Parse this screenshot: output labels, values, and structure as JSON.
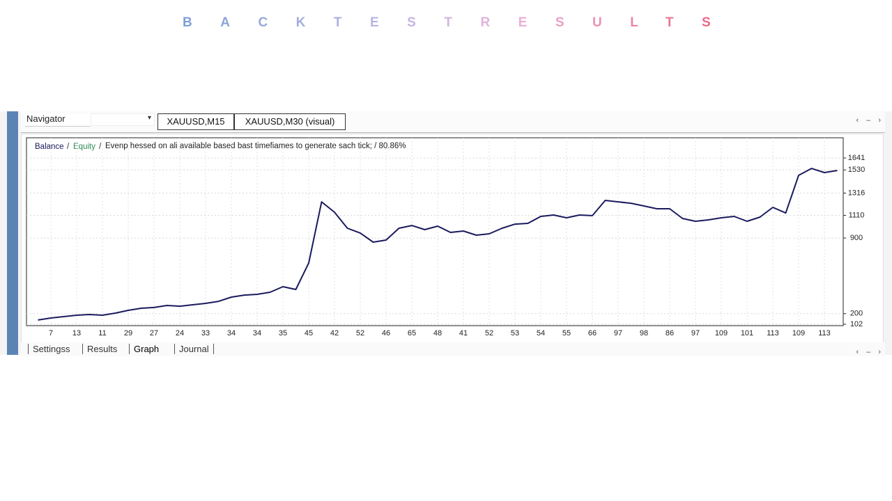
{
  "header": {
    "title": "BACKTESTRESULTS"
  },
  "toolbar": {
    "navigator": "Navigator",
    "tabs": [
      "XAUUSD,M15",
      "XAUUSD,M30 (visual)"
    ]
  },
  "bottom_tabs": [
    "Settingss",
    "Results",
    "Graph",
    "Journal"
  ],
  "chart_data": {
    "type": "line",
    "separator": "/",
    "equity_label": "Equity",
    "note": "Evenp hessed on ali available based bast timefiames to generate sach tick; / 80.86%",
    "categories": [
      null,
      "7",
      null,
      "13",
      null,
      "11",
      null,
      "29",
      null,
      "27",
      null,
      "24",
      null,
      "33",
      null,
      "34",
      null,
      "34",
      null,
      "35",
      null,
      "45",
      null,
      "42",
      null,
      "52",
      null,
      "46",
      null,
      "65",
      null,
      "48",
      null,
      "41",
      null,
      "52",
      null,
      "53",
      null,
      "54",
      null,
      "55",
      null,
      "66",
      null,
      "97",
      null,
      "98",
      null,
      "86",
      null,
      "97",
      null,
      "109",
      null,
      "101",
      null,
      "113",
      null,
      "109",
      null,
      "113",
      null
    ],
    "series": [
      {
        "name": "Balance",
        "color": "#1a1a5e",
        "values": [
          141,
          160,
          173,
          186,
          192,
          186,
          205,
          231,
          250,
          257,
          276,
          269,
          282,
          295,
          314,
          353,
          372,
          379,
          398,
          450,
          424,
          669,
          1235,
          1139,
          991,
          946,
          862,
          881,
          991,
          1016,
          978,
          1010,
          952,
          965,
          926,
          939,
          991,
          1029,
          1036,
          1100,
          1113,
          1087,
          1113,
          1107,
          1248,
          1235,
          1222,
          1197,
          1171,
          1171,
          1081,
          1055,
          1068,
          1087,
          1100,
          1055,
          1094,
          1184,
          1132,
          1480,
          1544,
          1506,
          1525
        ]
      }
    ],
    "equity_color": "#2e8b57",
    "ylim": [
      102,
      1815
    ],
    "yticks": [
      102,
      200,
      900,
      1110,
      1316,
      1530,
      1641
    ],
    "grid": true
  }
}
